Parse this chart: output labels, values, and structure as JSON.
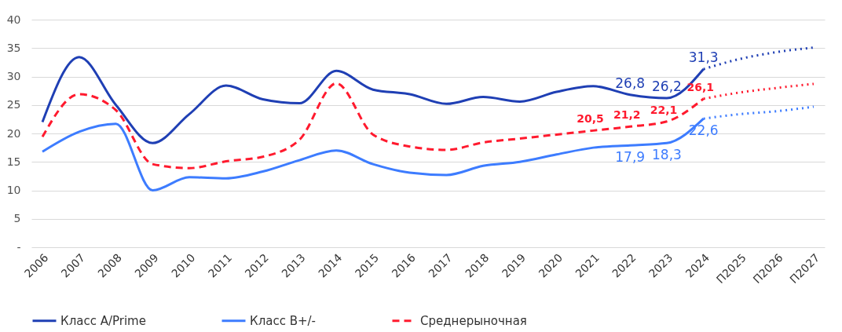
{
  "chart_data": {
    "type": "line",
    "categories": [
      "2006",
      "2007",
      "2008",
      "2009",
      "2010",
      "2011",
      "2012",
      "2013",
      "2014",
      "2015",
      "2016",
      "2017",
      "2018",
      "2019",
      "2020",
      "2021",
      "2022",
      "2023",
      "2024",
      "П2025",
      "П2026",
      "П2027"
    ],
    "series": [
      {
        "name": "Класс A/Prime",
        "color": "#1f3fb4",
        "line_style": "solid",
        "values": [
          22,
          33.4,
          25.0,
          18.3,
          23.4,
          28.4,
          26.0,
          25.3,
          31.0,
          27.7,
          26.9,
          25.2,
          26.4,
          25.6,
          27.3,
          28.3,
          26.8,
          26.2,
          31.3,
          null,
          null,
          null
        ],
        "value_labels": [
          null,
          null,
          null,
          null,
          null,
          null,
          null,
          null,
          null,
          null,
          null,
          null,
          null,
          null,
          null,
          null,
          "26,8",
          "26,2",
          "31,3",
          null,
          null,
          null
        ]
      },
      {
        "name": "Класс B+/-",
        "color": "#3d7cff",
        "line_style": "solid",
        "values": [
          16.8,
          20.3,
          21.7,
          10.0,
          12.3,
          12.1,
          13.3,
          15.3,
          17.0,
          14.6,
          13.1,
          12.7,
          14.3,
          15.0,
          16.3,
          17.5,
          17.9,
          18.3,
          22.6,
          null,
          null,
          null
        ],
        "value_labels": [
          null,
          null,
          null,
          null,
          null,
          null,
          null,
          null,
          null,
          null,
          null,
          null,
          null,
          null,
          null,
          null,
          "17,9",
          "18,3",
          "22,6",
          null,
          null,
          null
        ]
      },
      {
        "name": "Среднерыночная",
        "color": "#ff1a2e",
        "line_style": "dashed",
        "values": [
          19.4,
          26.9,
          24.1,
          14.6,
          13.9,
          15.1,
          15.9,
          18.9,
          28.8,
          19.8,
          17.7,
          17.1,
          18.4,
          19.1,
          19.8,
          20.5,
          21.2,
          22.1,
          26.1,
          null,
          null,
          null
        ],
        "value_labels": [
          null,
          null,
          null,
          null,
          null,
          null,
          null,
          null,
          null,
          null,
          null,
          null,
          null,
          null,
          null,
          "20,5",
          "21,2",
          "22,1",
          "26,1",
          null,
          null,
          null
        ]
      },
      {
        "color": "#1f3fb4",
        "line_style": "dotted",
        "values": [
          null,
          null,
          null,
          null,
          null,
          null,
          null,
          null,
          null,
          null,
          null,
          null,
          null,
          null,
          null,
          null,
          null,
          null,
          31.3,
          33.1,
          34.3,
          35.1
        ]
      },
      {
        "color": "#3d7cff",
        "line_style": "dotted",
        "values": [
          null,
          null,
          null,
          null,
          null,
          null,
          null,
          null,
          null,
          null,
          null,
          null,
          null,
          null,
          null,
          null,
          null,
          null,
          22.6,
          23.4,
          23.9,
          24.7
        ]
      },
      {
        "color": "#ff1a2e",
        "line_style": "dotted",
        "values": [
          null,
          null,
          null,
          null,
          null,
          null,
          null,
          null,
          null,
          null,
          null,
          null,
          null,
          null,
          null,
          null,
          null,
          null,
          26.1,
          27.2,
          28.0,
          28.7
        ]
      }
    ],
    "ylim": [
      0,
      40
    ],
    "yticks": [
      {
        "value": 0,
        "label": "-"
      },
      5,
      10,
      15,
      20,
      25,
      30,
      35,
      40
    ],
    "grid": "y",
    "legend": "bottom"
  }
}
